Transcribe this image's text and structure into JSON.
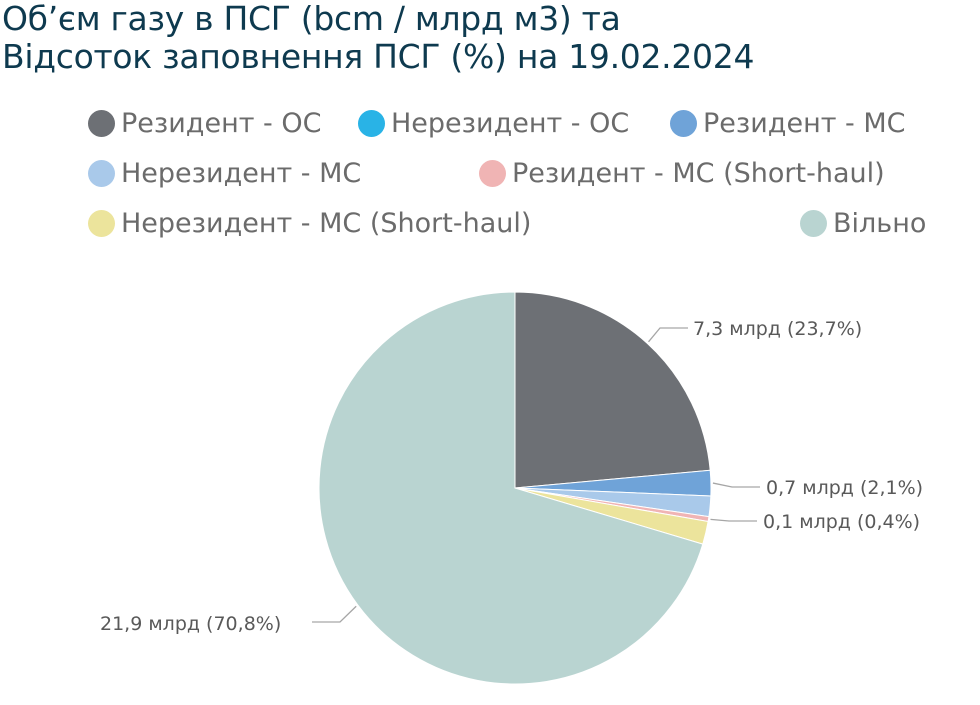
{
  "title": {
    "line1": "Об’єм газу в ПСГ (bcm / млрд м3) та",
    "line2": "Відсоток заповнення ПСГ (%) на 19.02.2024"
  },
  "legend": [
    {
      "label": "Резидент - ОС",
      "color": "#6d7075"
    },
    {
      "label": "Нерезидент - ОС",
      "color": "#29b3e6"
    },
    {
      "label": "Резидент - МС",
      "color": "#6fa3d8"
    },
    {
      "label": "Нерезидент - МС",
      "color": "#a9c9ea"
    },
    {
      "label": "Резидент -  МС (Short-haul)",
      "color": "#f0b4b4"
    },
    {
      "label": "Нерезидент -  МС (Short-haul)",
      "color": "#ece49c"
    },
    {
      "label": "Вільно",
      "color": "#b9d4d1"
    }
  ],
  "chart_data": {
    "type": "pie",
    "title": "Об’єм газу в ПСГ (bcm / млрд м3) та Відсоток заповнення ПСГ (%) на 19.02.2024",
    "start_angle_deg": 0,
    "direction": "clockwise",
    "slices": [
      {
        "name": "Резидент - ОС",
        "value_pct": 23.7,
        "label": "7,3 млрд (23,7%)",
        "color": "#6d7075"
      },
      {
        "name": "Нерезидент - ОС",
        "value_pct": 0.0,
        "label": "",
        "color": "#29b3e6"
      },
      {
        "name": "Резидент - МС",
        "value_pct": 2.1,
        "label": "0,7 млрд (2,1%)",
        "color": "#6fa3d8"
      },
      {
        "name": "Нерезидент - МС",
        "value_pct": 1.7,
        "label": "",
        "color": "#a9c9ea"
      },
      {
        "name": "Резидент -  МС (Short-haul)",
        "value_pct": 0.4,
        "label": "0,1 млрд (0,4%)",
        "color": "#f0b4b4"
      },
      {
        "name": "Нерезидент -  МС (Short-haul)",
        "value_pct": 1.9,
        "label": "",
        "color": "#ece49c"
      },
      {
        "name": "Вільно",
        "value_pct": 70.8,
        "label": "21,9 млрд (70,8%)",
        "color": "#b9d4d1"
      }
    ]
  }
}
